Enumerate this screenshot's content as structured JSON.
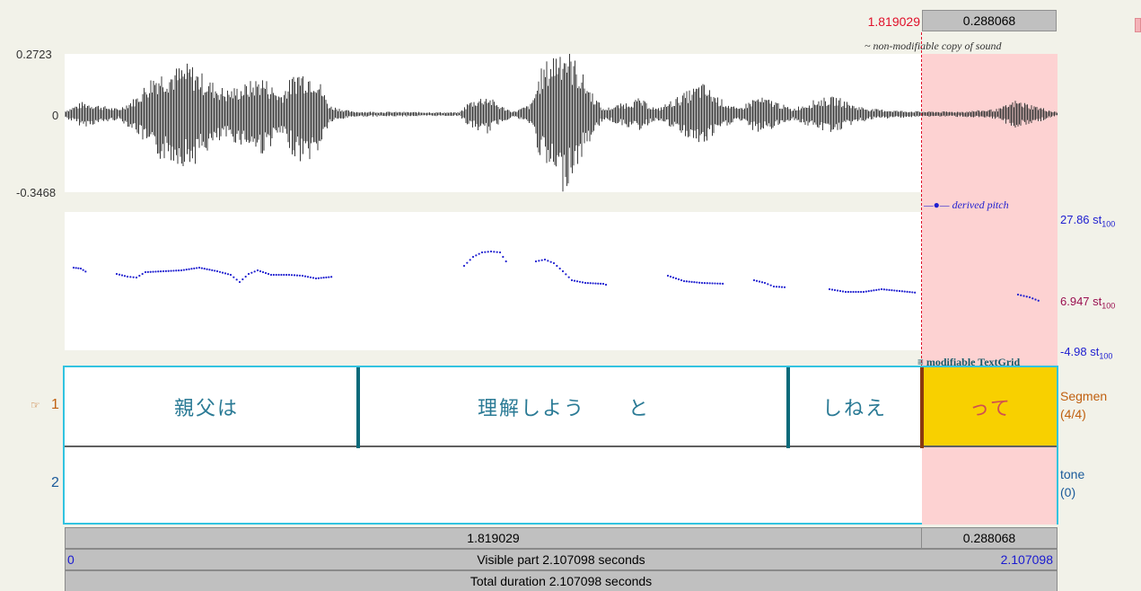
{
  "top_bar": {
    "cursor_time": "1.819029",
    "selection_duration": "0.288068"
  },
  "sound": {
    "note": "~ non-modifiable copy of sound",
    "y_max": "0.2723",
    "y_zero": "0",
    "y_min": "-0.3468"
  },
  "pitch": {
    "legend": "derived pitch",
    "top_label": "27.86 st",
    "mid_label": "6.947 st",
    "bottom_label": "-4.98 st",
    "unit_sub": "100"
  },
  "textgrid": {
    "note": "modifiable TextGrid",
    "tiers": [
      {
        "number": "1",
        "name": "Segmen",
        "count": "(4/4)",
        "intervals": [
          "親父は",
          "理解しよう　　と",
          "しねえ",
          "って"
        ]
      },
      {
        "number": "2",
        "name": "tone",
        "count": "(0)"
      }
    ]
  },
  "bottom": {
    "before_selection": "1.819029",
    "selection": "0.288068",
    "visible_start": "0",
    "visible_part": "Visible part 2.107098 seconds",
    "visible_end": "2.107098",
    "total_duration": "Total duration 2.107098 seconds"
  },
  "colors": {
    "selection_shade": "#fdd2d2",
    "cursor": "#e0102a",
    "selected_interval": "#f8d000",
    "pitch_points": "#2020d0",
    "textgrid_border": "#32c3e0"
  }
}
